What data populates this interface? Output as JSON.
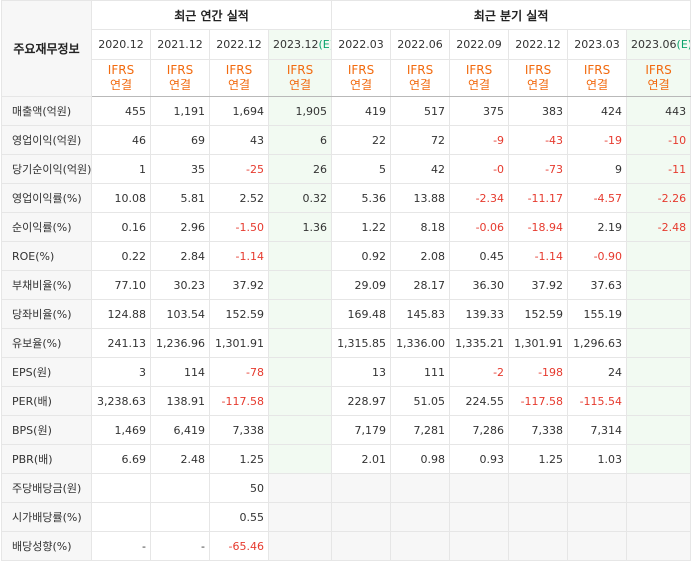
{
  "header": {
    "row_label": "주요재무정보",
    "annual_title": "최근 연간 실적",
    "quarter_title": "최근 분기 실적",
    "annual_dates": [
      "2020.12",
      "2021.12",
      "2022.12",
      "2023.12"
    ],
    "annual_est_marker": "(E)",
    "quarter_dates": [
      "2022.03",
      "2022.06",
      "2022.09",
      "2022.12",
      "2023.03",
      "2023.06"
    ],
    "quarter_est_marker": "(E)",
    "ifrs_line1": "IFRS",
    "ifrs_line2": "연결"
  },
  "rows": [
    {
      "label": "매출액(억원)",
      "values": [
        "455",
        "1,191",
        "1,694",
        "1,905",
        "419",
        "517",
        "375",
        "383",
        "424",
        "443"
      ]
    },
    {
      "label": "영업이익(억원)",
      "values": [
        "46",
        "69",
        "43",
        "6",
        "22",
        "72",
        "-9",
        "-43",
        "-19",
        "-10"
      ]
    },
    {
      "label": "당기순이익(억원)",
      "values": [
        "1",
        "35",
        "-25",
        "26",
        "5",
        "42",
        "-0",
        "-73",
        "9",
        "-11"
      ]
    },
    {
      "label": "영업이익률(%)",
      "values": [
        "10.08",
        "5.81",
        "2.52",
        "0.32",
        "5.36",
        "13.88",
        "-2.34",
        "-11.17",
        "-4.57",
        "-2.26"
      ]
    },
    {
      "label": "순이익률(%)",
      "values": [
        "0.16",
        "2.96",
        "-1.50",
        "1.36",
        "1.22",
        "8.18",
        "-0.06",
        "-18.94",
        "2.19",
        "-2.48"
      ]
    },
    {
      "label": "ROE(%)",
      "values": [
        "0.22",
        "2.84",
        "-1.14",
        "",
        "0.92",
        "2.08",
        "0.45",
        "-1.14",
        "-0.90",
        ""
      ]
    },
    {
      "label": "부채비율(%)",
      "values": [
        "77.10",
        "30.23",
        "37.92",
        "",
        "29.09",
        "28.17",
        "36.30",
        "37.92",
        "37.63",
        ""
      ]
    },
    {
      "label": "당좌비율(%)",
      "values": [
        "124.88",
        "103.54",
        "152.59",
        "",
        "169.48",
        "145.83",
        "139.33",
        "152.59",
        "155.19",
        ""
      ]
    },
    {
      "label": "유보율(%)",
      "values": [
        "241.13",
        "1,236.96",
        "1,301.91",
        "",
        "1,315.85",
        "1,336.00",
        "1,335.21",
        "1,301.91",
        "1,296.63",
        ""
      ]
    },
    {
      "label": "EPS(원)",
      "values": [
        "3",
        "114",
        "-78",
        "",
        "13",
        "111",
        "-2",
        "-198",
        "24",
        ""
      ]
    },
    {
      "label": "PER(배)",
      "values": [
        "3,238.63",
        "138.91",
        "-117.58",
        "",
        "228.97",
        "51.05",
        "224.55",
        "-117.58",
        "-115.54",
        ""
      ]
    },
    {
      "label": "BPS(원)",
      "values": [
        "1,469",
        "6,419",
        "7,338",
        "",
        "7,179",
        "7,281",
        "7,286",
        "7,338",
        "7,314",
        ""
      ]
    },
    {
      "label": "PBR(배)",
      "values": [
        "6.69",
        "2.48",
        "1.25",
        "",
        "2.01",
        "0.98",
        "0.93",
        "1.25",
        "1.03",
        ""
      ]
    },
    {
      "label": "주당배당금(원)",
      "values": [
        "",
        "",
        "50",
        "",
        "",
        "",
        "",
        "",
        "",
        ""
      ]
    },
    {
      "label": "시가배당률(%)",
      "values": [
        "",
        "",
        "0.55",
        "",
        "",
        "",
        "",
        "",
        "",
        ""
      ]
    },
    {
      "label": "배당성향(%)",
      "values": [
        "-",
        "-",
        "-65.46",
        "",
        "",
        "",
        "",
        "",
        "",
        ""
      ]
    }
  ],
  "colors": {
    "ifrs": "#f26a0f",
    "negative": "#e63a2e",
    "estimate_bg": "#f2faf2",
    "estimate_marker": "#0aa36b",
    "label_bg": "#f7f7f7"
  }
}
